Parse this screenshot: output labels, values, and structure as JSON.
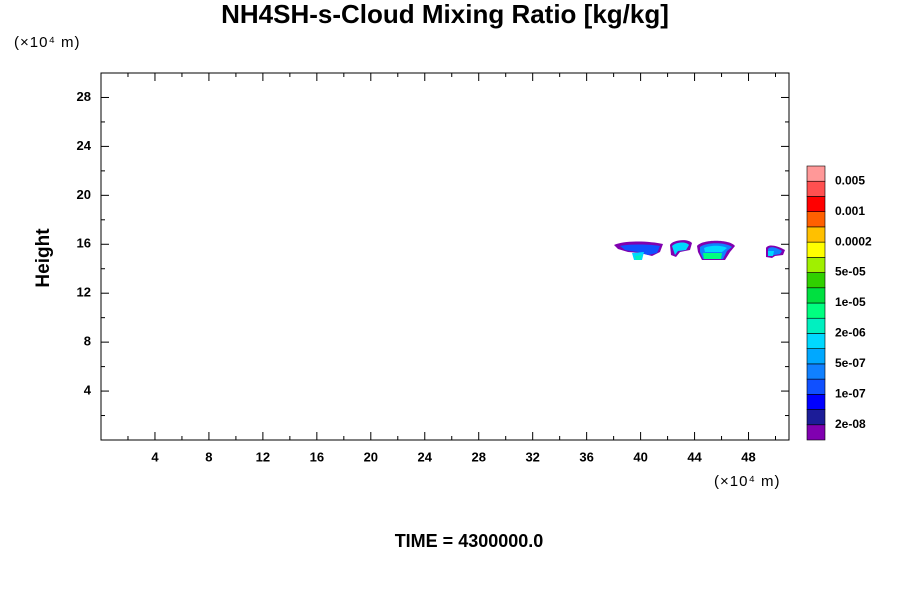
{
  "chart_data": {
    "type": "contour",
    "title": "NH4SH-s-Cloud Mixing Ratio [kg/kg]",
    "ylabel": "Height",
    "y_unit": "(×10⁴ m)",
    "x_unit": "(×10⁴ m)",
    "footer": "TIME = 4300000.0",
    "xlim": [
      0,
      51
    ],
    "ylim": [
      0,
      30
    ],
    "xticks": [
      4,
      8,
      12,
      16,
      20,
      24,
      28,
      32,
      36,
      40,
      44,
      48
    ],
    "xminorticks": [
      2,
      6,
      10,
      14,
      18,
      22,
      26,
      30,
      34,
      38,
      42,
      46,
      50
    ],
    "yticks": [
      4,
      8,
      12,
      16,
      20,
      24,
      28
    ],
    "yminorticks": [
      2,
      6,
      10,
      14,
      18,
      22,
      26
    ],
    "colorbar": {
      "colors": [
        "#8000b0",
        "#1c1c98",
        "#0000ff",
        "#1050ff",
        "#1080ff",
        "#00a8ff",
        "#00d8ff",
        "#00f0c0",
        "#00ff80",
        "#00e040",
        "#30d000",
        "#a0f000",
        "#ffff00",
        "#ffc000",
        "#ff6000",
        "#ff0000",
        "#ff5050",
        "#ff9898"
      ],
      "ticks": [
        {
          "value": 2e-08,
          "label": "2e-08"
        },
        {
          "value": 1e-07,
          "label": "1e-07"
        },
        {
          "value": 5e-07,
          "label": "5e-07"
        },
        {
          "value": 2e-06,
          "label": "2e-06"
        },
        {
          "value": 1e-05,
          "label": "1e-05"
        },
        {
          "value": 5e-05,
          "label": "5e-05"
        },
        {
          "value": 0.0002,
          "label": "0.0002"
        },
        {
          "value": 0.001,
          "label": "0.001"
        },
        {
          "value": 0.005,
          "label": "0.005"
        }
      ]
    }
  }
}
